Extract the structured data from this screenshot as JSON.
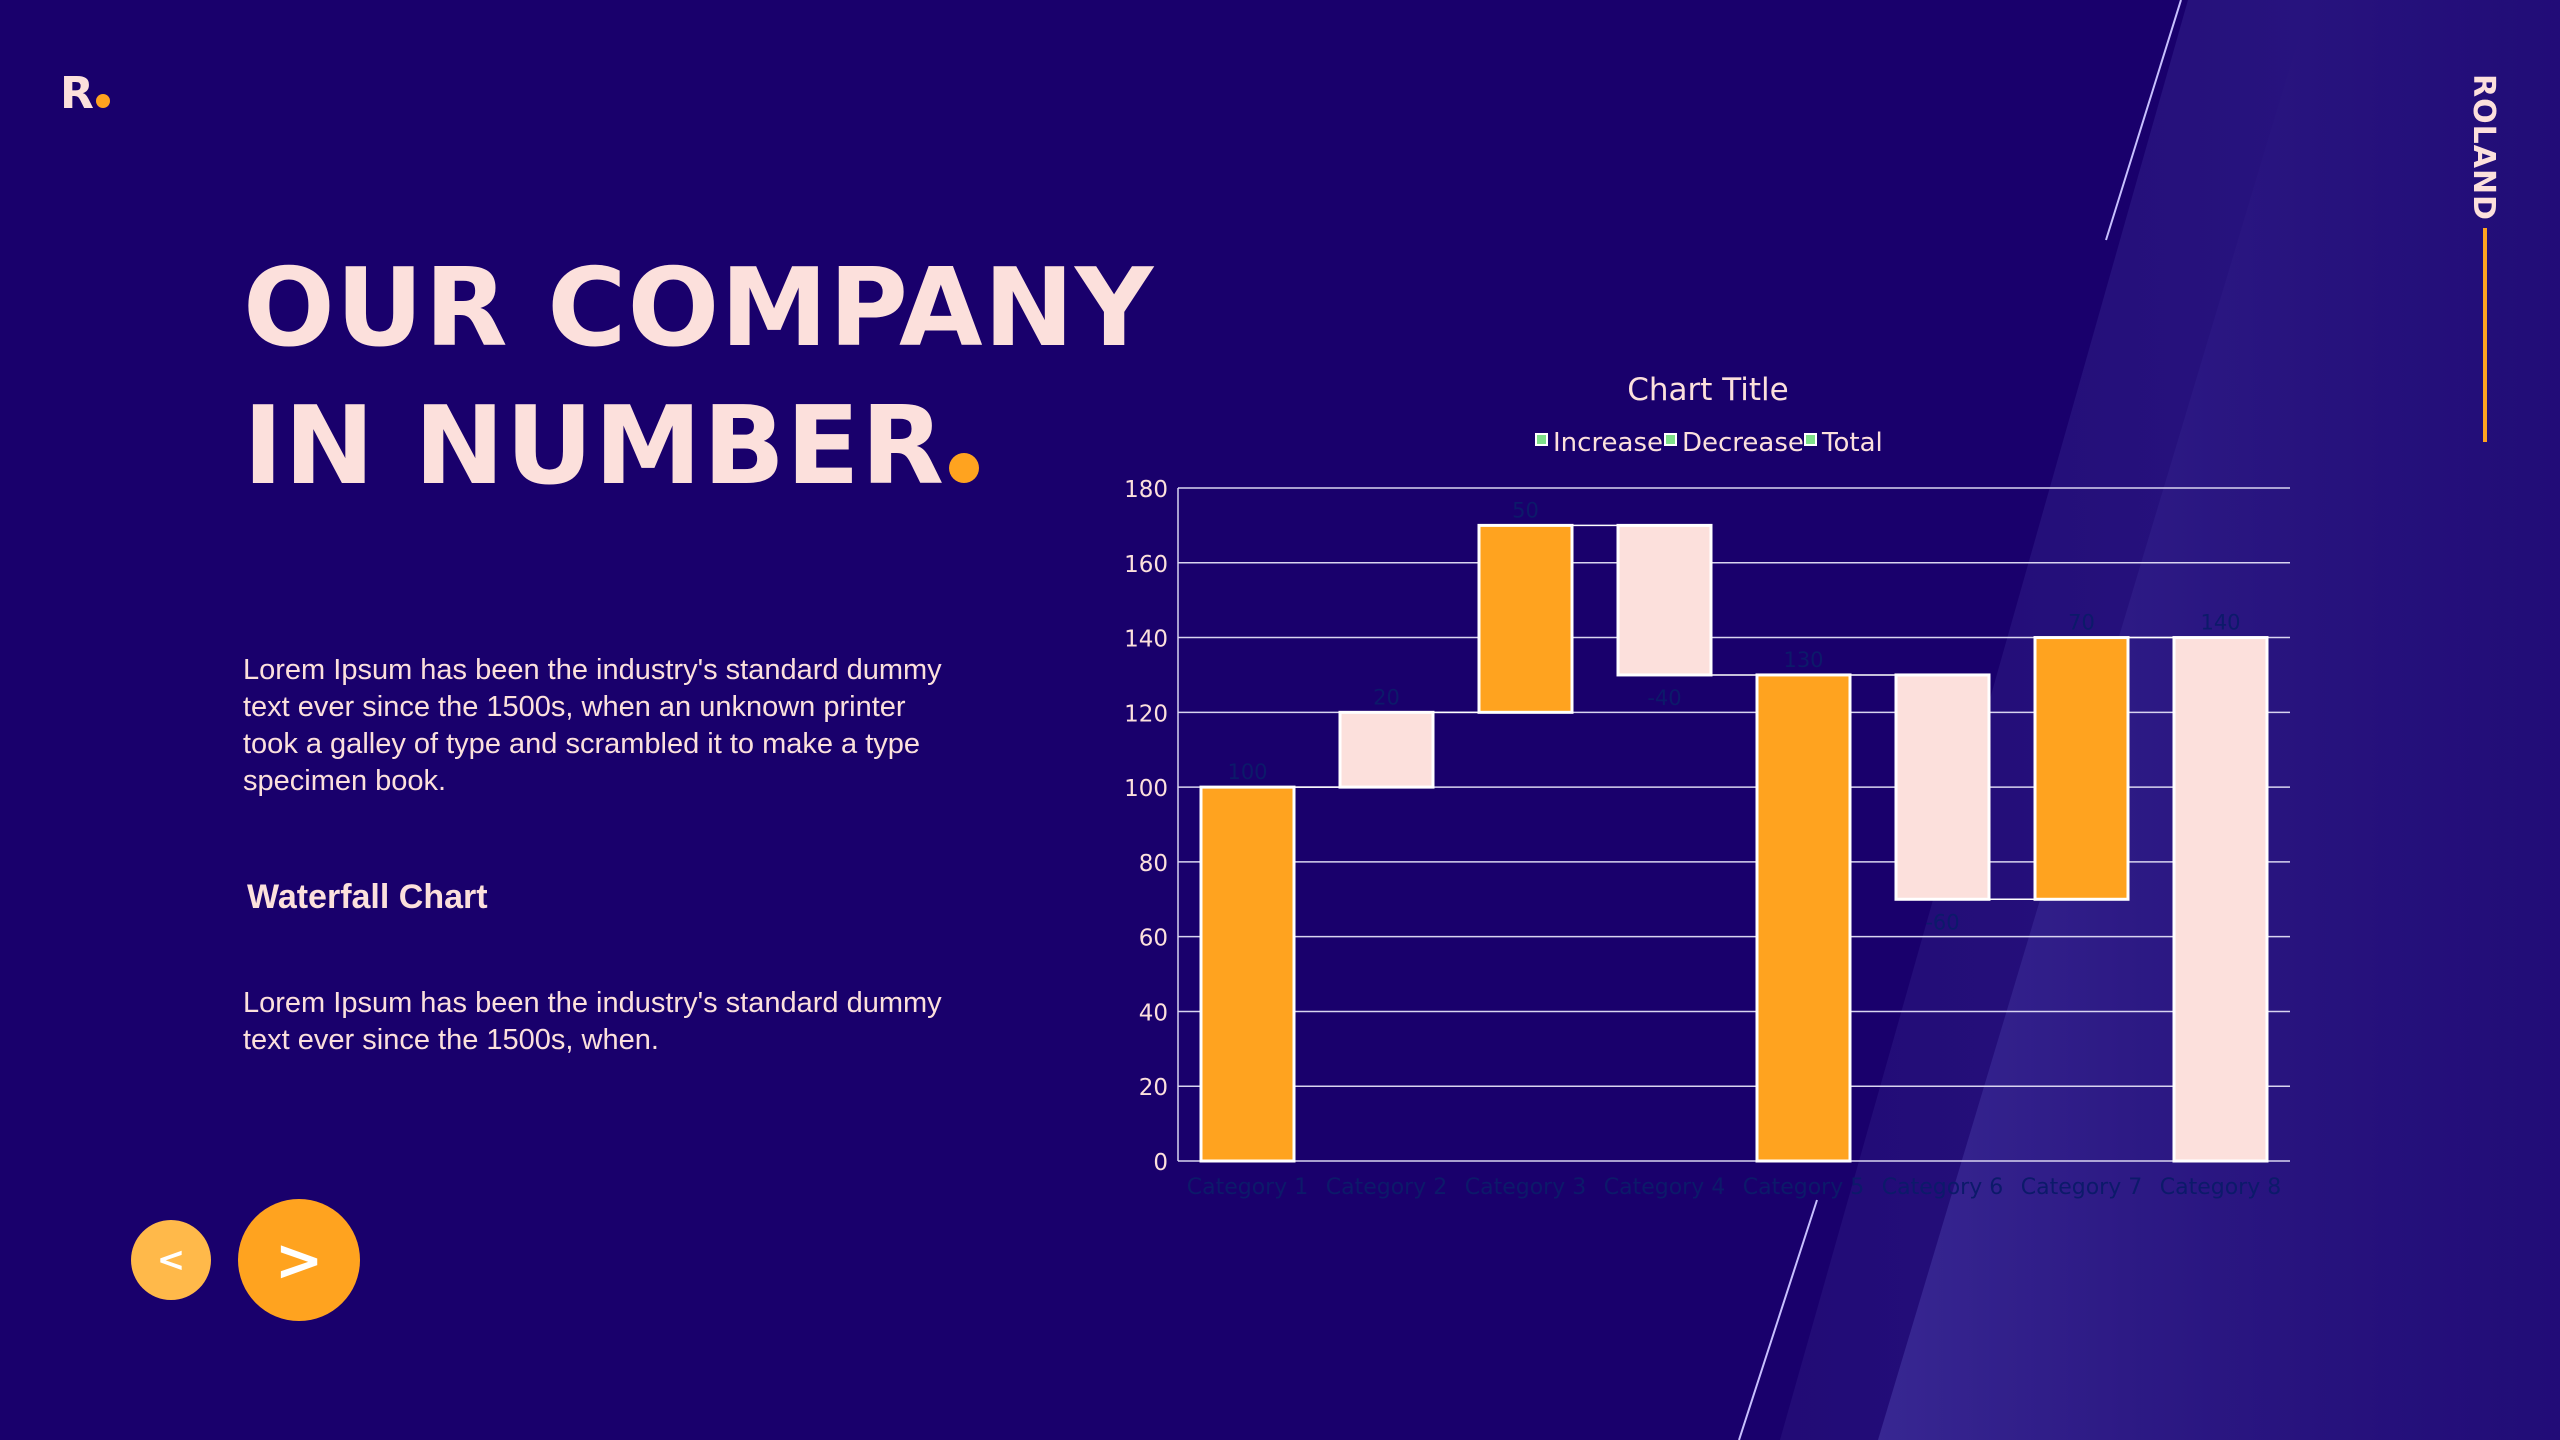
{
  "brand": {
    "logo_letter": "R",
    "side_label": "ROLAND"
  },
  "heading": {
    "line1": "OUR COMPANY",
    "line2": "IN NUMBER"
  },
  "content": {
    "paragraph1": "Lorem Ipsum has been the industry's standard dummy text ever since the 1500s, when an unknown printer took a galley of type and scrambled it to make a type specimen book.",
    "subheading": "Waterfall Chart",
    "paragraph2": "Lorem Ipsum has been the industry's standard dummy text ever since the 1500s, when."
  },
  "nav": {
    "prev_label": "<",
    "next_label": ">"
  },
  "colors": {
    "background": "#19006c",
    "accent": "#ffa31f",
    "pink": "#fce0dc",
    "legend_marker": "#7ee08a",
    "data_label": "#0c1a6a"
  },
  "chart_data": {
    "type": "bar",
    "subtype": "waterfall",
    "title": "Chart Title",
    "legend": [
      "Increase",
      "Decrease",
      "Total"
    ],
    "legend_position": "top",
    "categories": [
      "Category 1",
      "Category 2",
      "Category 3",
      "Category 4",
      "Category 5",
      "Category 6",
      "Category 7",
      "Category 8"
    ],
    "values": [
      100,
      20,
      50,
      -40,
      130,
      -60,
      70,
      140
    ],
    "data_labels": [
      "100",
      "20",
      "50",
      "-40",
      "130",
      "-60",
      "70",
      "140"
    ],
    "bar_ranges": [
      [
        0,
        100
      ],
      [
        100,
        120
      ],
      [
        120,
        170
      ],
      [
        130,
        170
      ],
      [
        0,
        130
      ],
      [
        70,
        130
      ],
      [
        70,
        140
      ],
      [
        0,
        140
      ]
    ],
    "bar_colors": [
      "accent",
      "pink",
      "accent",
      "pink",
      "accent",
      "pink",
      "accent",
      "pink"
    ],
    "ylim": [
      0,
      180
    ],
    "yticks": [
      0,
      20,
      40,
      60,
      80,
      100,
      120,
      140,
      160,
      180
    ],
    "grid": true
  }
}
